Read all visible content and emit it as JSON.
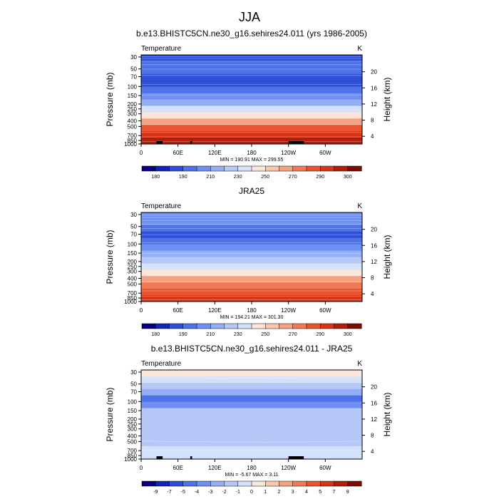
{
  "figure": {
    "title": "JJA"
  },
  "chart_data": [
    {
      "type": "heatmap",
      "title": "b.e13.BHISTC5CN.ne30_g16.sehires24.011 (yrs 1986-2005)",
      "left_label": "Temperature",
      "right_label": "K",
      "ylabel": "Pressure (mb)",
      "ylabel_right": "Height (km)",
      "x_ticks": [
        "0",
        "60E",
        "120E",
        "180",
        "120W",
        "60W"
      ],
      "y_ticks": [
        "30",
        "50",
        "70",
        "100",
        "150",
        "200",
        "250",
        "300",
        "400",
        "500",
        "700",
        "850",
        "1000"
      ],
      "y_ticks_right": [
        "20",
        "16",
        "12",
        "8",
        "4"
      ],
      "stats": "MIN = 190.91  MAX = 299.55",
      "colorbar_labels": [
        "180",
        "190",
        "210",
        "230",
        "250",
        "270",
        "290",
        "300"
      ],
      "colors": [
        "#08007a",
        "#1224b8",
        "#2e4fd8",
        "#4d72ea",
        "#6f90f0",
        "#93aef4",
        "#b6c8f7",
        "#d4e1fa",
        "#fbe5d8",
        "#f8c7ad",
        "#f4a382",
        "#ef7a55",
        "#e85530",
        "#d83518",
        "#b01e0a",
        "#7a0c03"
      ],
      "profile": [
        2,
        3,
        3,
        2,
        2,
        3,
        4,
        5,
        7,
        8,
        10,
        12,
        13,
        14
      ],
      "terrain_blocks": [
        [
          25,
          35
        ],
        [
          80,
          83
        ],
        [
          240,
          265
        ]
      ],
      "contour_curves": [
        [
          [
            0,
            20
          ],
          [
            60,
            20
          ],
          [
            100,
            20
          ],
          [
            160,
            20
          ],
          [
            360,
            20
          ]
        ],
        [
          [
            0,
            40
          ],
          [
            360,
            40
          ]
        ],
        [
          [
            0,
            70
          ],
          [
            360,
            70
          ]
        ],
        [
          [
            0,
            110
          ],
          [
            360,
            110
          ]
        ],
        [
          [
            0,
            160
          ],
          [
            360,
            160
          ]
        ],
        [
          [
            0,
            230
          ],
          [
            360,
            230
          ]
        ],
        [
          [
            0,
            330
          ],
          [
            360,
            330
          ]
        ],
        [
          [
            0,
            450
          ],
          [
            360,
            450
          ]
        ],
        [
          [
            0,
            620
          ],
          [
            360,
            620
          ]
        ],
        [
          [
            0,
            780
          ],
          [
            360,
            780
          ]
        ],
        [
          [
            0,
            870
          ],
          [
            360,
            870
          ]
        ],
        [
          [
            0,
            920
          ],
          [
            360,
            920
          ]
        ],
        [
          [
            0,
            970
          ],
          [
            360,
            970
          ]
        ]
      ]
    },
    {
      "type": "heatmap",
      "title": "JRA25",
      "left_label": "Temperature",
      "right_label": "K",
      "ylabel": "Pressure (mb)",
      "ylabel_right": "Height (km)",
      "x_ticks": [
        "0",
        "60E",
        "120E",
        "180",
        "120W",
        "60W"
      ],
      "y_ticks": [
        "30",
        "50",
        "70",
        "100",
        "150",
        "200",
        "250",
        "300",
        "400",
        "500",
        "700",
        "850",
        "1000"
      ],
      "y_ticks_right": [
        "20",
        "16",
        "12",
        "8",
        "4"
      ],
      "stats": "MIN = 194.21  MAX = 301.30",
      "colorbar_labels": [
        "180",
        "190",
        "210",
        "230",
        "250",
        "270",
        "290",
        "300"
      ],
      "colors": [
        "#08007a",
        "#1224b8",
        "#2e4fd8",
        "#4d72ea",
        "#6f90f0",
        "#93aef4",
        "#b6c8f7",
        "#d4e1fa",
        "#fbe5d8",
        "#f8c7ad",
        "#f4a382",
        "#ef7a55",
        "#e85530",
        "#d83518",
        "#b01e0a",
        "#7a0c03"
      ],
      "profile": [
        4,
        4,
        3,
        2,
        3,
        4,
        5,
        6,
        7,
        8,
        10,
        11,
        12,
        13
      ],
      "terrain_blocks": [],
      "contour_curves": [
        [
          [
            0,
            30
          ],
          [
            360,
            30
          ]
        ],
        [
          [
            0,
            60
          ],
          [
            360,
            60
          ]
        ],
        [
          [
            0,
            90
          ],
          [
            360,
            90
          ]
        ],
        [
          [
            0,
            130
          ],
          [
            360,
            130
          ]
        ],
        [
          [
            0,
            180
          ],
          [
            360,
            180
          ]
        ],
        [
          [
            0,
            250
          ],
          [
            360,
            250
          ]
        ],
        [
          [
            0,
            340
          ],
          [
            360,
            340
          ]
        ],
        [
          [
            0,
            460
          ],
          [
            360,
            460
          ]
        ],
        [
          [
            0,
            620
          ],
          [
            360,
            620
          ]
        ],
        [
          [
            0,
            780
          ],
          [
            360,
            780
          ]
        ],
        [
          [
            0,
            880
          ],
          [
            360,
            880
          ]
        ],
        [
          [
            0,
            940
          ],
          [
            360,
            940
          ]
        ],
        [
          [
            0,
            980
          ],
          [
            360,
            980
          ]
        ]
      ]
    },
    {
      "type": "heatmap",
      "title": "b.e13.BHISTC5CN.ne30_g16.sehires24.011 - JRA25",
      "left_label": "Temperature",
      "right_label": "K",
      "ylabel": "Pressure (mb)",
      "ylabel_right": "Height (km)",
      "x_ticks": [
        "0",
        "60E",
        "120E",
        "180",
        "120W",
        "60W"
      ],
      "y_ticks": [
        "30",
        "50",
        "70",
        "100",
        "150",
        "200",
        "250",
        "300",
        "400",
        "500",
        "700",
        "850",
        "1000"
      ],
      "y_ticks_right": [
        "20",
        "16",
        "12",
        "8",
        "4"
      ],
      "stats": "MIN =  -5.67  MAX =   3.11",
      "colorbar_labels": [
        "-9",
        "-7",
        "-5",
        "-4",
        "-3",
        "-2",
        "-1",
        "0",
        "1",
        "2",
        "3",
        "4",
        "5",
        "7",
        "9"
      ],
      "colors": [
        "#08007a",
        "#1224b8",
        "#2e4fd8",
        "#4d72ea",
        "#6f90f0",
        "#93aef4",
        "#b6c8f7",
        "#d4e1fa",
        "#fbe5d8",
        "#f8c7ad",
        "#f4a382",
        "#ef7a55",
        "#e85530",
        "#d83518",
        "#b01e0a",
        "#7a0c03"
      ],
      "profile": [
        8,
        7,
        6,
        5,
        3,
        4,
        6,
        6,
        6,
        6,
        6,
        6,
        7,
        7
      ],
      "terrain_blocks": [
        [
          25,
          35
        ],
        [
          80,
          83
        ],
        [
          240,
          265
        ]
      ],
      "contour_curves": [
        [
          [
            0,
            30
          ],
          [
            360,
            30
          ]
        ],
        [
          [
            0,
            55
          ],
          [
            360,
            55
          ]
        ],
        [
          [
            0,
            72
          ],
          [
            100,
            80
          ],
          [
            130,
            90
          ],
          [
            360,
            74
          ]
        ],
        [
          [
            0,
            95
          ],
          [
            360,
            95
          ]
        ],
        [
          [
            0,
            140
          ],
          [
            360,
            140
          ]
        ],
        [
          [
            0,
            800
          ],
          [
            200,
            810
          ],
          [
            360,
            800
          ]
        ],
        [
          [
            0,
            900
          ],
          [
            360,
            900
          ]
        ]
      ]
    }
  ]
}
